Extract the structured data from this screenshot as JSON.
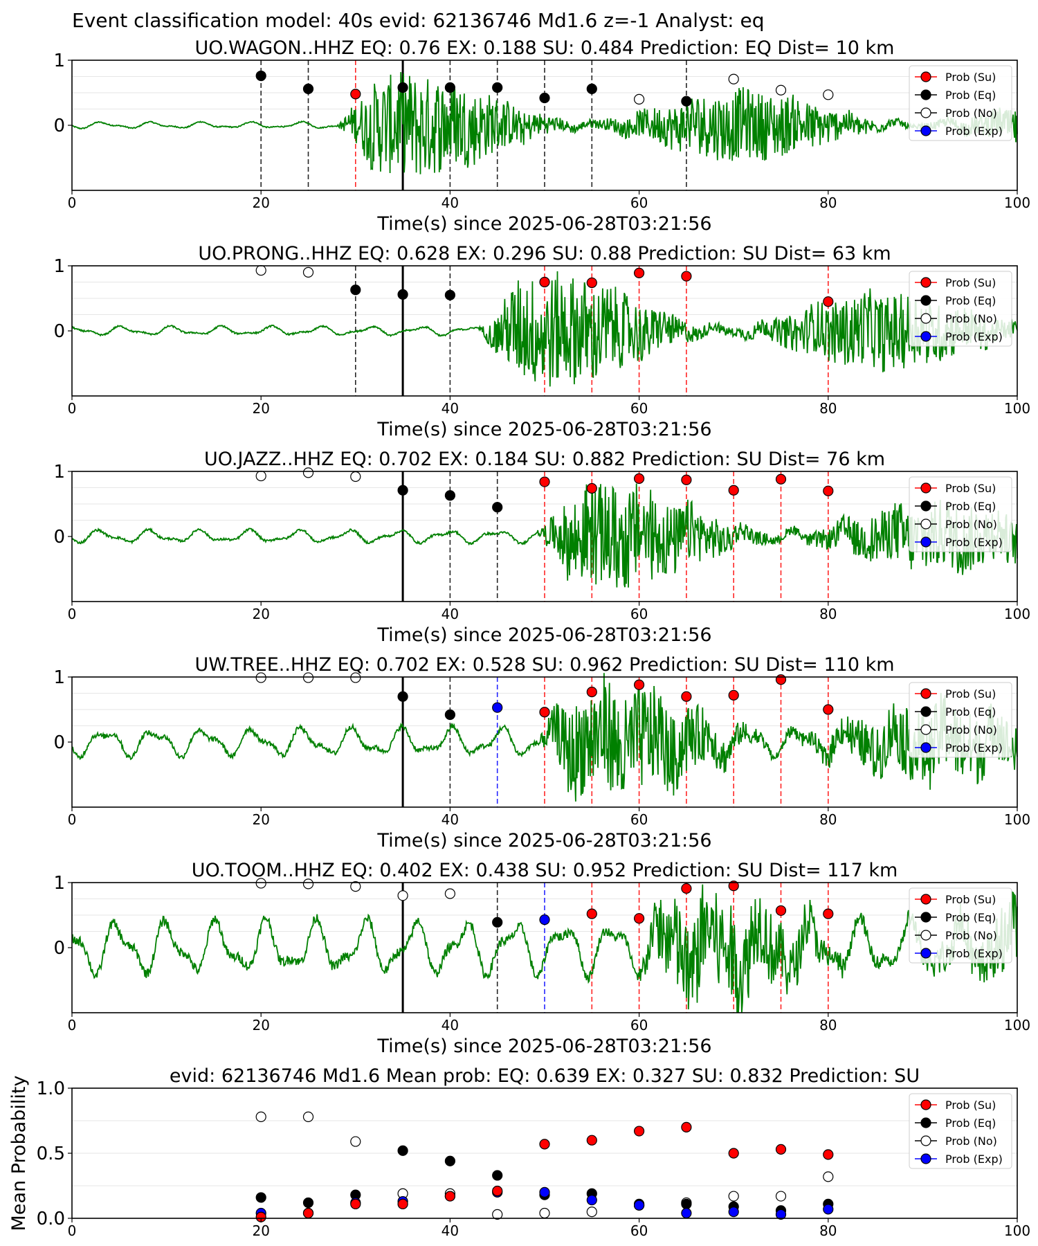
{
  "figure_title": "Event classification model: 40s evid: 62136746 Md1.6 z=-1 Analyst: eq",
  "legend": [
    "Prob (Su)",
    "Prob (Eq)",
    "Prob (No)",
    "Prob (Exp)"
  ],
  "colors": {
    "su": "#ff0000",
    "eq": "#000000",
    "no": "#ffffff",
    "exp": "#0000ff",
    "trace": "#008000"
  },
  "chart_data": [
    {
      "type": "line",
      "title": "UO.WAGON..HHZ   EQ: 0.76  EX: 0.188  SU: 0.484   Prediction: EQ    Dist= 10 km",
      "xlabel": "Time(s) since 2025-06-28T03:21:56",
      "ylabel": "",
      "xlim": [
        0,
        100
      ],
      "ylim": [
        -1,
        1
      ],
      "xticks": [
        "0",
        "20",
        "40",
        "60",
        "80",
        "100"
      ],
      "yticks": [
        "1",
        "0"
      ],
      "onset": 28,
      "noise_amp": 0.05,
      "signal_amp": 0.55,
      "markers": [
        {
          "x": 20,
          "y": 0.76,
          "cls": "eq"
        },
        {
          "x": 25,
          "y": 0.56,
          "cls": "eq"
        },
        {
          "x": 30,
          "y": 0.48,
          "cls": "su"
        },
        {
          "x": 35,
          "y": 0.58,
          "cls": "eq"
        },
        {
          "x": 40,
          "y": 0.58,
          "cls": "eq"
        },
        {
          "x": 45,
          "y": 0.58,
          "cls": "eq"
        },
        {
          "x": 50,
          "y": 0.42,
          "cls": "eq"
        },
        {
          "x": 55,
          "y": 0.56,
          "cls": "eq"
        },
        {
          "x": 60,
          "y": 0.4,
          "cls": "no"
        },
        {
          "x": 65,
          "y": 0.37,
          "cls": "eq"
        },
        {
          "x": 70,
          "y": 0.71,
          "cls": "no"
        },
        {
          "x": 75,
          "y": 0.54,
          "cls": "no"
        },
        {
          "x": 80,
          "y": 0.47,
          "cls": "no"
        }
      ]
    },
    {
      "type": "line",
      "title": "UO.PRONG..HHZ   EQ: 0.628  EX: 0.296  SU: 0.88   Prediction: SU    Dist= 63 km",
      "xlabel": "Time(s) since 2025-06-28T03:21:56",
      "ylabel": "",
      "xlim": [
        0,
        100
      ],
      "ylim": [
        -1,
        1
      ],
      "xticks": [
        "0",
        "20",
        "40",
        "60",
        "80",
        "100"
      ],
      "yticks": [
        "1",
        "0"
      ],
      "onset": 43,
      "noise_amp": 0.07,
      "signal_amp": 0.6,
      "markers": [
        {
          "x": 20,
          "y": 0.93,
          "cls": "no"
        },
        {
          "x": 25,
          "y": 0.9,
          "cls": "no"
        },
        {
          "x": 30,
          "y": 0.63,
          "cls": "eq"
        },
        {
          "x": 35,
          "y": 0.56,
          "cls": "eq"
        },
        {
          "x": 40,
          "y": 0.55,
          "cls": "eq"
        },
        {
          "x": 50,
          "y": 0.75,
          "cls": "su"
        },
        {
          "x": 55,
          "y": 0.74,
          "cls": "su"
        },
        {
          "x": 60,
          "y": 0.89,
          "cls": "su"
        },
        {
          "x": 65,
          "y": 0.84,
          "cls": "su"
        },
        {
          "x": 80,
          "y": 0.45,
          "cls": "su"
        }
      ]
    },
    {
      "type": "line",
      "title": "UO.JAZZ..HHZ   EQ: 0.702  EX: 0.184  SU: 0.882   Prediction: SU    Dist= 76 km",
      "xlabel": "Time(s) since 2025-06-28T03:21:56",
      "ylabel": "",
      "xlim": [
        0,
        100
      ],
      "ylim": [
        -1,
        1
      ],
      "xticks": [
        "0",
        "20",
        "40",
        "60",
        "80",
        "100"
      ],
      "yticks": [
        "1",
        "0"
      ],
      "onset": 49,
      "noise_amp": 0.1,
      "signal_amp": 0.55,
      "markers": [
        {
          "x": 20,
          "y": 0.93,
          "cls": "no"
        },
        {
          "x": 25,
          "y": 0.98,
          "cls": "no"
        },
        {
          "x": 30,
          "y": 0.92,
          "cls": "no"
        },
        {
          "x": 35,
          "y": 0.71,
          "cls": "eq"
        },
        {
          "x": 40,
          "y": 0.63,
          "cls": "eq"
        },
        {
          "x": 45,
          "y": 0.45,
          "cls": "eq"
        },
        {
          "x": 50,
          "y": 0.84,
          "cls": "su"
        },
        {
          "x": 55,
          "y": 0.74,
          "cls": "su"
        },
        {
          "x": 60,
          "y": 0.89,
          "cls": "su"
        },
        {
          "x": 65,
          "y": 0.87,
          "cls": "su"
        },
        {
          "x": 70,
          "y": 0.71,
          "cls": "su"
        },
        {
          "x": 75,
          "y": 0.88,
          "cls": "su"
        },
        {
          "x": 80,
          "y": 0.7,
          "cls": "su"
        }
      ]
    },
    {
      "type": "line",
      "title": "UW.TREE..HHZ   EQ: 0.702  EX: 0.528  SU: 0.962   Prediction: SU    Dist= 110 km",
      "xlabel": "Time(s) since 2025-06-28T03:21:56",
      "ylabel": "",
      "xlim": [
        0,
        100
      ],
      "ylim": [
        -1,
        1
      ],
      "xticks": [
        "0",
        "20",
        "40",
        "60",
        "80",
        "100"
      ],
      "yticks": [
        "1",
        "0"
      ],
      "onset": 49,
      "noise_amp": 0.22,
      "signal_amp": 0.6,
      "markers": [
        {
          "x": 20,
          "y": 0.99,
          "cls": "no"
        },
        {
          "x": 25,
          "y": 0.99,
          "cls": "no"
        },
        {
          "x": 30,
          "y": 0.99,
          "cls": "no"
        },
        {
          "x": 35,
          "y": 0.7,
          "cls": "eq"
        },
        {
          "x": 40,
          "y": 0.42,
          "cls": "eq"
        },
        {
          "x": 45,
          "y": 0.53,
          "cls": "exp"
        },
        {
          "x": 50,
          "y": 0.46,
          "cls": "su"
        },
        {
          "x": 55,
          "y": 0.77,
          "cls": "su"
        },
        {
          "x": 60,
          "y": 0.88,
          "cls": "su"
        },
        {
          "x": 65,
          "y": 0.7,
          "cls": "su"
        },
        {
          "x": 70,
          "y": 0.72,
          "cls": "su"
        },
        {
          "x": 75,
          "y": 0.96,
          "cls": "su"
        },
        {
          "x": 80,
          "y": 0.5,
          "cls": "su"
        }
      ]
    },
    {
      "type": "line",
      "title": "UO.TOOM..HHZ   EQ: 0.402  EX: 0.438  SU: 0.952   Prediction: SU    Dist= 117 km",
      "xlabel": "Time(s) since 2025-06-28T03:21:56",
      "ylabel": "",
      "xlim": [
        0,
        100
      ],
      "ylim": [
        -1,
        1
      ],
      "xticks": [
        "0",
        "20",
        "40",
        "60",
        "80",
        "100"
      ],
      "yticks": [
        "1",
        "0"
      ],
      "onset": 59,
      "noise_amp": 0.42,
      "signal_amp": 0.55,
      "markers": [
        {
          "x": 20,
          "y": 0.99,
          "cls": "no"
        },
        {
          "x": 25,
          "y": 0.98,
          "cls": "no"
        },
        {
          "x": 30,
          "y": 0.94,
          "cls": "no"
        },
        {
          "x": 35,
          "y": 0.8,
          "cls": "no"
        },
        {
          "x": 40,
          "y": 0.83,
          "cls": "no"
        },
        {
          "x": 45,
          "y": 0.39,
          "cls": "eq"
        },
        {
          "x": 50,
          "y": 0.43,
          "cls": "exp"
        },
        {
          "x": 55,
          "y": 0.52,
          "cls": "su"
        },
        {
          "x": 60,
          "y": 0.45,
          "cls": "su"
        },
        {
          "x": 65,
          "y": 0.91,
          "cls": "su"
        },
        {
          "x": 70,
          "y": 0.95,
          "cls": "su"
        },
        {
          "x": 75,
          "y": 0.57,
          "cls": "su"
        },
        {
          "x": 80,
          "y": 0.52,
          "cls": "su"
        }
      ]
    },
    {
      "type": "scatter",
      "title": "evid: 62136746  Md1.6   Mean prob:   EQ: 0.639  EX: 0.327  SU: 0.832   Prediction: SU",
      "xlabel": "",
      "ylabel": "Mean Probability",
      "xlim": [
        0,
        100
      ],
      "ylim": [
        0,
        1
      ],
      "xticks": [
        "0",
        "20",
        "40",
        "60",
        "80",
        "100"
      ],
      "yticks": [
        "1.0",
        "0.5",
        "0.0"
      ],
      "x": [
        20,
        25,
        30,
        35,
        40,
        45,
        50,
        55,
        60,
        65,
        70,
        75,
        80
      ],
      "series": [
        {
          "name": "Prob (No)",
          "cls": "no",
          "values": [
            0.78,
            0.78,
            0.59,
            0.19,
            0.19,
            0.03,
            0.04,
            0.05,
            0.1,
            0.12,
            0.17,
            0.17,
            0.32
          ]
        },
        {
          "name": "Prob (Eq)",
          "cls": "eq",
          "values": [
            0.16,
            0.12,
            0.18,
            0.52,
            0.44,
            0.33,
            0.18,
            0.19,
            0.11,
            0.11,
            0.09,
            0.06,
            0.11
          ]
        },
        {
          "name": "Prob (Exp)",
          "cls": "exp",
          "values": [
            0.04,
            0.04,
            0.12,
            0.13,
            0.17,
            0.2,
            0.2,
            0.14,
            0.1,
            0.04,
            0.05,
            0.03,
            0.07
          ]
        },
        {
          "name": "Prob (Su)",
          "cls": "su",
          "values": [
            0.01,
            0.04,
            0.11,
            0.11,
            0.17,
            0.21,
            0.57,
            0.6,
            0.67,
            0.7,
            0.5,
            0.53,
            0.49
          ]
        }
      ]
    }
  ]
}
